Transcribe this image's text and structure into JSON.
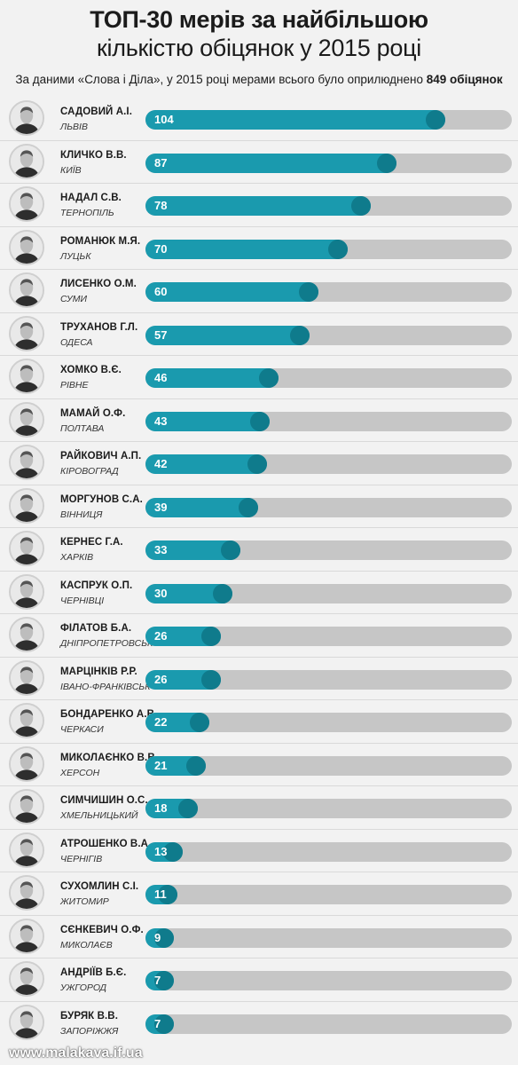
{
  "header": {
    "title_line1": "ТОП-30 мерів за найбільшою",
    "title_line2": "кількістю обіцянок у 2015 році",
    "subtitle_prefix": "За даними «Слова і Діла», у 2015 році мерами всього було оприлюднено",
    "subtitle_bold": "849 обіцянок"
  },
  "colors": {
    "bar_fill": "#1a9aae",
    "bar_knob": "#0f7b8c",
    "bar_track": "#c6c6c6",
    "background": "#f2f2f2"
  },
  "chart_data": {
    "type": "bar",
    "orientation": "horizontal",
    "categories": [
      "САДОВИЙ А.І.",
      "КЛИЧКО В.В.",
      "НАДАЛ С.В.",
      "РОМАНЮК М.Я.",
      "ЛИСЕНКО О.М.",
      "ТРУХАНОВ Г.Л.",
      "ХОМКО В.Є.",
      "МАМАЙ О.Ф.",
      "РАЙКОВИЧ А.П.",
      "МОРГУНОВ С.А.",
      "КЕРНЕС Г.А.",
      "КАСПРУК О.П.",
      "ФІЛАТОВ Б.А.",
      "МАРЦІНКІВ Р.Р.",
      "БОНДАРЕНКО А.В.",
      "МИКОЛАЄНКО В.В.",
      "СИМЧИШИН О.С.",
      "АТРОШЕНКО В.А.",
      "СУХОМЛИН С.І.",
      "СЄНКЕВИЧ О.Ф.",
      "АНДРІЇВ Б.Є.",
      "БУРЯК В.В."
    ],
    "cities": [
      "ЛЬВІВ",
      "КИЇВ",
      "ТЕРНОПІЛЬ",
      "ЛУЦЬК",
      "СУМИ",
      "ОДЕСА",
      "РІВНЕ",
      "ПОЛТАВА",
      "КІРОВОГРАД",
      "ВІННИЦЯ",
      "ХАРКІВ",
      "ЧЕРНІВЦІ",
      "ДНІПРОПЕТРОВСЬК",
      "ІВАНО-ФРАНКІВСЬК",
      "ЧЕРКАСИ",
      "ХЕРСОН",
      "ХМЕЛЬНИЦЬКИЙ",
      "ЧЕРНІГІВ",
      "ЖИТОМИР",
      "МИКОЛАЄВ",
      "УЖГОРОД",
      "ЗАПОРІЖЖЯ"
    ],
    "values": [
      104,
      87,
      78,
      70,
      60,
      57,
      46,
      43,
      42,
      39,
      33,
      30,
      26,
      26,
      22,
      21,
      18,
      13,
      11,
      9,
      7,
      7
    ],
    "xlim": [
      0,
      127
    ]
  },
  "footer": {
    "website": "www.malakava.if.ua"
  }
}
